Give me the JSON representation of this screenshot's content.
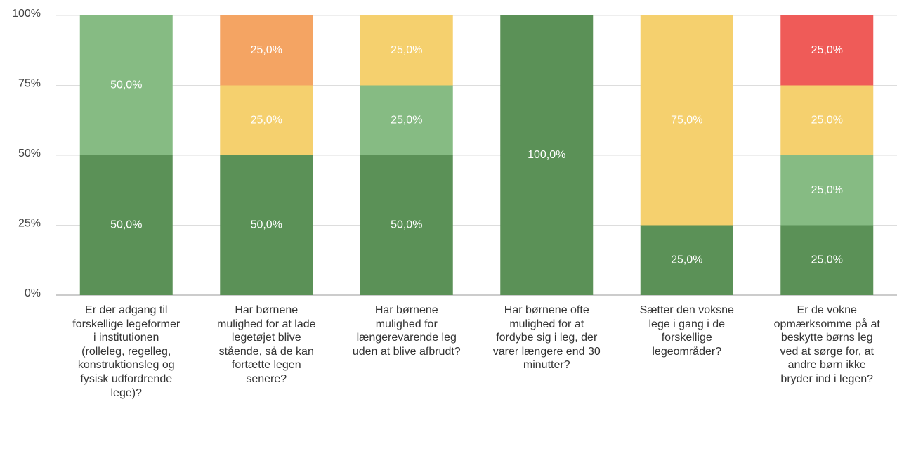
{
  "chart_data": {
    "type": "stacked_bar",
    "categories": [
      "Er der adgang til forskellige legeformer i institutionen (rolleleg, regelleg, konstruktionsleg og fysisk udfordrende lege)?",
      "Har børnene mulighed for at lade legetøjet blive stående, så de kan fortætte legen senere?",
      "Har børnene mulighed for længerevarende leg uden at blive afbrudt?",
      "Har børnene ofte mulighed for at fordybe sig i leg, der varer længere end 30 minutter?",
      "Sætter den voksne lege i gang i de forskellige legeområder?",
      "Er de vokne opmærksomme på at beskytte børns leg ved at sørge for, at andre børn ikke bryder ind i legen?"
    ],
    "series": [
      {
        "color": "#5b9157",
        "values": [
          50,
          50,
          50,
          100,
          25,
          25
        ],
        "value_labels": [
          "50,0%",
          "50,0%",
          "50,0%",
          "100,0%",
          "25,0%",
          "25,0%"
        ]
      },
      {
        "color": "#86bb83",
        "values": [
          50,
          null,
          25,
          null,
          null,
          25
        ],
        "value_labels": [
          "50,0%",
          null,
          "25,0%",
          null,
          null,
          "25,0%"
        ]
      },
      {
        "color": "#f5d06e",
        "values": [
          null,
          25,
          25,
          null,
          75,
          25
        ],
        "value_labels": [
          null,
          "25,0%",
          "25,0%",
          null,
          "75,0%",
          "25,0%"
        ]
      },
      {
        "color": "#f4a463",
        "values": [
          null,
          25,
          null,
          null,
          null,
          null
        ],
        "value_labels": [
          null,
          "25,0%",
          null,
          null,
          null,
          null
        ]
      },
      {
        "color": "#ef5b58",
        "values": [
          null,
          null,
          null,
          null,
          null,
          25
        ],
        "value_labels": [
          null,
          null,
          null,
          null,
          null,
          "25,0%"
        ]
      }
    ],
    "ylim": [
      0,
      100
    ],
    "yticks": [
      {
        "value": 0,
        "label": "0%"
      },
      {
        "value": 25,
        "label": "25%"
      },
      {
        "value": 50,
        "label": "50%"
      },
      {
        "value": 75,
        "label": "75%"
      },
      {
        "value": 100,
        "label": "100%"
      }
    ],
    "grid": true
  }
}
